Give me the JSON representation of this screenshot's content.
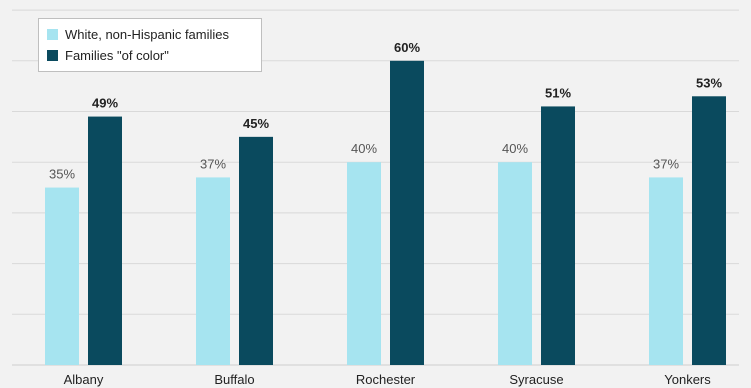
{
  "chart_data": {
    "type": "bar",
    "title": "",
    "xlabel": "",
    "ylabel": "",
    "ylim": [
      0,
      70
    ],
    "grid": true,
    "legend_position": "top-left",
    "categories": [
      "Albany",
      "Buffalo",
      "Rochester",
      "Syracuse",
      "Yonkers"
    ],
    "series": [
      {
        "name": "White, non-Hispanic families",
        "color": "#a6e4f0",
        "values": [
          35,
          37,
          40,
          40,
          37
        ],
        "labels": [
          "35%",
          "37%",
          "40%",
          "40%",
          "37%"
        ]
      },
      {
        "name": "Families \"of color\"",
        "color": "#0a4a5e",
        "values": [
          49,
          45,
          60,
          51,
          53
        ],
        "labels": [
          "49%",
          "45%",
          "60%",
          "51%",
          "53%"
        ]
      }
    ]
  }
}
